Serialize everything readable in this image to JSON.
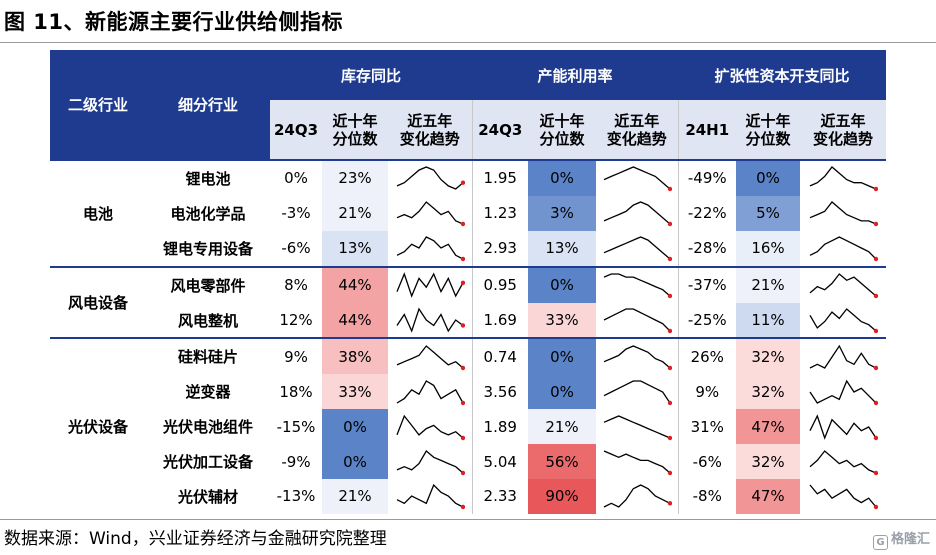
{
  "title": "图 11、新能源主要行业供给侧指标",
  "footer": "数据来源：Wind，兴业证券经济与金融研究院整理",
  "logo_text": "格隆汇",
  "logo_mark": "G",
  "colors": {
    "header_bg": "#1f3b8f",
    "high": "#e8585a",
    "low": "#5b83c7"
  },
  "header": {
    "level2": "二级行业",
    "sub_industry": "细分行业",
    "groups": [
      "库存同比",
      "产能利用率",
      "扩张性资本开支同比"
    ],
    "sub": [
      "24Q3",
      "近十年\n分位数",
      "近五年\n变化趋势",
      "24Q3",
      "近十年\n分位数",
      "近五年\n变化趋势",
      "24H1",
      "近十年\n分位数",
      "近五年\n变化趋势"
    ]
  },
  "categories": [
    {
      "name": "电池",
      "rows": 3
    },
    {
      "name": "风电设备",
      "rows": 2
    },
    {
      "name": "光伏设备",
      "rows": 5
    }
  ],
  "rows": [
    {
      "industry": "锂电池",
      "inv": "0%",
      "inv_pct": "23%",
      "inv_p": 23,
      "cap": "1.95",
      "cap_pct": "0%",
      "cap_p": 0,
      "capex": "-49%",
      "capex_pct": "0%",
      "capex_p": 0
    },
    {
      "industry": "电池化学品",
      "inv": "-3%",
      "inv_pct": "21%",
      "inv_p": 21,
      "cap": "1.23",
      "cap_pct": "3%",
      "cap_p": 3,
      "capex": "-22%",
      "capex_pct": "5%",
      "capex_p": 5
    },
    {
      "industry": "锂电专用设备",
      "inv": "-6%",
      "inv_pct": "13%",
      "inv_p": 13,
      "cap": "2.93",
      "cap_pct": "13%",
      "cap_p": 13,
      "capex": "-28%",
      "capex_pct": "16%",
      "capex_p": 16
    },
    {
      "industry": "风电零部件",
      "inv": "8%",
      "inv_pct": "44%",
      "inv_p": 44,
      "cap": "0.95",
      "cap_pct": "0%",
      "cap_p": 0,
      "capex": "-37%",
      "capex_pct": "21%",
      "capex_p": 21
    },
    {
      "industry": "风电整机",
      "inv": "12%",
      "inv_pct": "44%",
      "inv_p": 44,
      "cap": "1.69",
      "cap_pct": "33%",
      "cap_p": 33,
      "capex": "-25%",
      "capex_pct": "11%",
      "capex_p": 11
    },
    {
      "industry": "硅料硅片",
      "inv": "9%",
      "inv_pct": "38%",
      "inv_p": 38,
      "cap": "0.74",
      "cap_pct": "0%",
      "cap_p": 0,
      "capex": "26%",
      "capex_pct": "32%",
      "capex_p": 32
    },
    {
      "industry": "逆变器",
      "inv": "18%",
      "inv_pct": "33%",
      "inv_p": 33,
      "cap": "3.56",
      "cap_pct": "0%",
      "cap_p": 0,
      "capex": "9%",
      "capex_pct": "32%",
      "capex_p": 32
    },
    {
      "industry": "光伏电池组件",
      "inv": "-15%",
      "inv_pct": "0%",
      "inv_p": 0,
      "cap": "1.89",
      "cap_pct": "21%",
      "cap_p": 21,
      "capex": "31%",
      "capex_pct": "47%",
      "capex_p": 47
    },
    {
      "industry": "光伏加工设备",
      "inv": "-9%",
      "inv_pct": "0%",
      "inv_p": 0,
      "cap": "5.04",
      "cap_pct": "56%",
      "cap_p": 56,
      "capex": "-6%",
      "capex_pct": "32%",
      "capex_p": 32
    },
    {
      "industry": "光伏辅材",
      "inv": "-13%",
      "inv_pct": "21%",
      "inv_p": 21,
      "cap": "2.33",
      "cap_pct": "90%",
      "cap_p": 90,
      "capex": "-8%",
      "capex_pct": "47%",
      "capex_p": 47
    }
  ],
  "trends": {
    "inv": [
      [
        3,
        4,
        6,
        8,
        9,
        8,
        5,
        3,
        2,
        4
      ],
      [
        4,
        5,
        4,
        6,
        9,
        7,
        5,
        6,
        3,
        2
      ],
      [
        4,
        5,
        7,
        6,
        9,
        8,
        6,
        7,
        4,
        3
      ],
      [
        5,
        9,
        4,
        8,
        6,
        9,
        5,
        8,
        4,
        7
      ],
      [
        5,
        7,
        4,
        8,
        6,
        5,
        7,
        4,
        6,
        5
      ],
      [
        3,
        4,
        5,
        6,
        9,
        7,
        5,
        3,
        4,
        2
      ],
      [
        4,
        5,
        7,
        6,
        9,
        8,
        5,
        6,
        7,
        4
      ],
      [
        3,
        9,
        6,
        3,
        5,
        6,
        4,
        3,
        4,
        2
      ],
      [
        3,
        4,
        3,
        5,
        9,
        7,
        6,
        5,
        4,
        2
      ],
      [
        5,
        4,
        6,
        5,
        4,
        9,
        7,
        6,
        4,
        3
      ]
    ],
    "cap": [
      [
        5,
        6,
        7,
        8,
        9,
        8,
        7,
        6,
        4,
        2
      ],
      [
        3,
        4,
        5,
        6,
        8,
        9,
        8,
        6,
        4,
        2
      ],
      [
        4,
        5,
        6,
        7,
        8,
        9,
        8,
        6,
        4,
        2
      ],
      [
        8,
        9,
        9,
        8,
        8,
        7,
        6,
        5,
        4,
        2
      ],
      [
        6,
        7,
        8,
        9,
        9,
        8,
        7,
        6,
        5,
        3
      ],
      [
        4,
        5,
        6,
        8,
        9,
        8,
        7,
        5,
        4,
        2
      ],
      [
        5,
        6,
        7,
        8,
        9,
        9,
        8,
        7,
        6,
        3
      ],
      [
        7,
        8,
        9,
        8,
        7,
        6,
        5,
        4,
        3,
        2
      ],
      [
        9,
        8,
        7,
        8,
        7,
        6,
        6,
        5,
        4,
        2
      ],
      [
        3,
        4,
        3,
        5,
        8,
        9,
        8,
        6,
        5,
        4
      ]
    ],
    "capex": [
      [
        3,
        4,
        6,
        9,
        7,
        5,
        4,
        4,
        3,
        2
      ],
      [
        4,
        5,
        6,
        9,
        7,
        5,
        4,
        3,
        3,
        2
      ],
      [
        3,
        4,
        6,
        7,
        8,
        7,
        6,
        5,
        4,
        2
      ],
      [
        3,
        5,
        4,
        6,
        9,
        7,
        8,
        6,
        4,
        2
      ],
      [
        7,
        3,
        5,
        8,
        6,
        9,
        7,
        5,
        4,
        2
      ],
      [
        3,
        4,
        3,
        6,
        9,
        5,
        4,
        7,
        4,
        3
      ],
      [
        6,
        3,
        4,
        5,
        4,
        9,
        6,
        7,
        5,
        3
      ],
      [
        5,
        9,
        3,
        8,
        6,
        4,
        7,
        5,
        6,
        3
      ],
      [
        4,
        6,
        9,
        7,
        5,
        6,
        4,
        5,
        3,
        2
      ],
      [
        7,
        5,
        6,
        4,
        5,
        6,
        4,
        3,
        4,
        2
      ]
    ]
  }
}
